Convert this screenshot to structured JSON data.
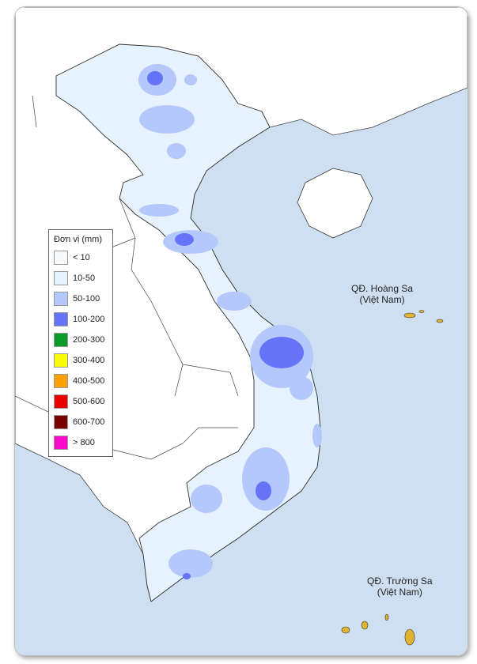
{
  "legend": {
    "title": "Đơn vị (mm)",
    "items": [
      {
        "label": "< 10",
        "color": "#f7f9fc"
      },
      {
        "label": "10-50",
        "color": "#e6f2fd"
      },
      {
        "label": "50-100",
        "color": "#b4c8fb"
      },
      {
        "label": "100-200",
        "color": "#6573f8"
      },
      {
        "label": "200-300",
        "color": "#0a9a2a"
      },
      {
        "label": "300-400",
        "color": "#fafa0a"
      },
      {
        "label": "400-500",
        "color": "#fca008"
      },
      {
        "label": "500-600",
        "color": "#e60000"
      },
      {
        "label": "600-700",
        "color": "#780000"
      },
      {
        "label": "> 800",
        "color": "#fa0ac8"
      }
    ]
  },
  "labels": {
    "hoang_sa": {
      "line1": "QĐ. Hoàng Sa",
      "line2": "(Việt Nam)"
    },
    "truong_sa": {
      "line1": "QĐ. Trường Sa",
      "line2": "(Việt Nam)"
    }
  },
  "colors": {
    "sea": "#cddff0",
    "land": "#ffffff",
    "vietnam": "#e6f2fd",
    "island": "#e0b232"
  }
}
